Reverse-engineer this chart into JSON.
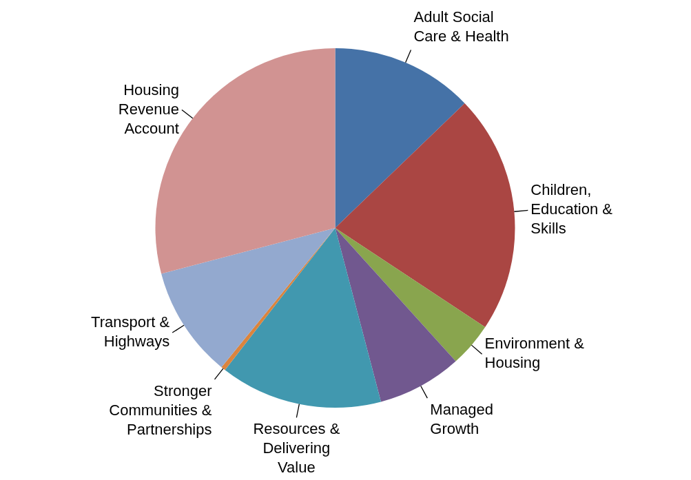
{
  "chart_data": {
    "type": "pie",
    "categories": [
      "Adult Social Care & Health",
      "Children, Education & Skills",
      "Environment & Housing",
      "Managed Growth",
      "Resources & Delivering Value",
      "Stronger Communities & Partnerships",
      "Transport & Highways",
      "Housing Revenue Account"
    ],
    "values": [
      12.8,
      21.5,
      4.0,
      7.6,
      14.6,
      0.4,
      10.0,
      29.1
    ],
    "colors": [
      "#4572a7",
      "#aa4643",
      "#89a54e",
      "#71588f",
      "#4198af",
      "#db843d",
      "#93a9cf",
      "#d19392"
    ]
  }
}
